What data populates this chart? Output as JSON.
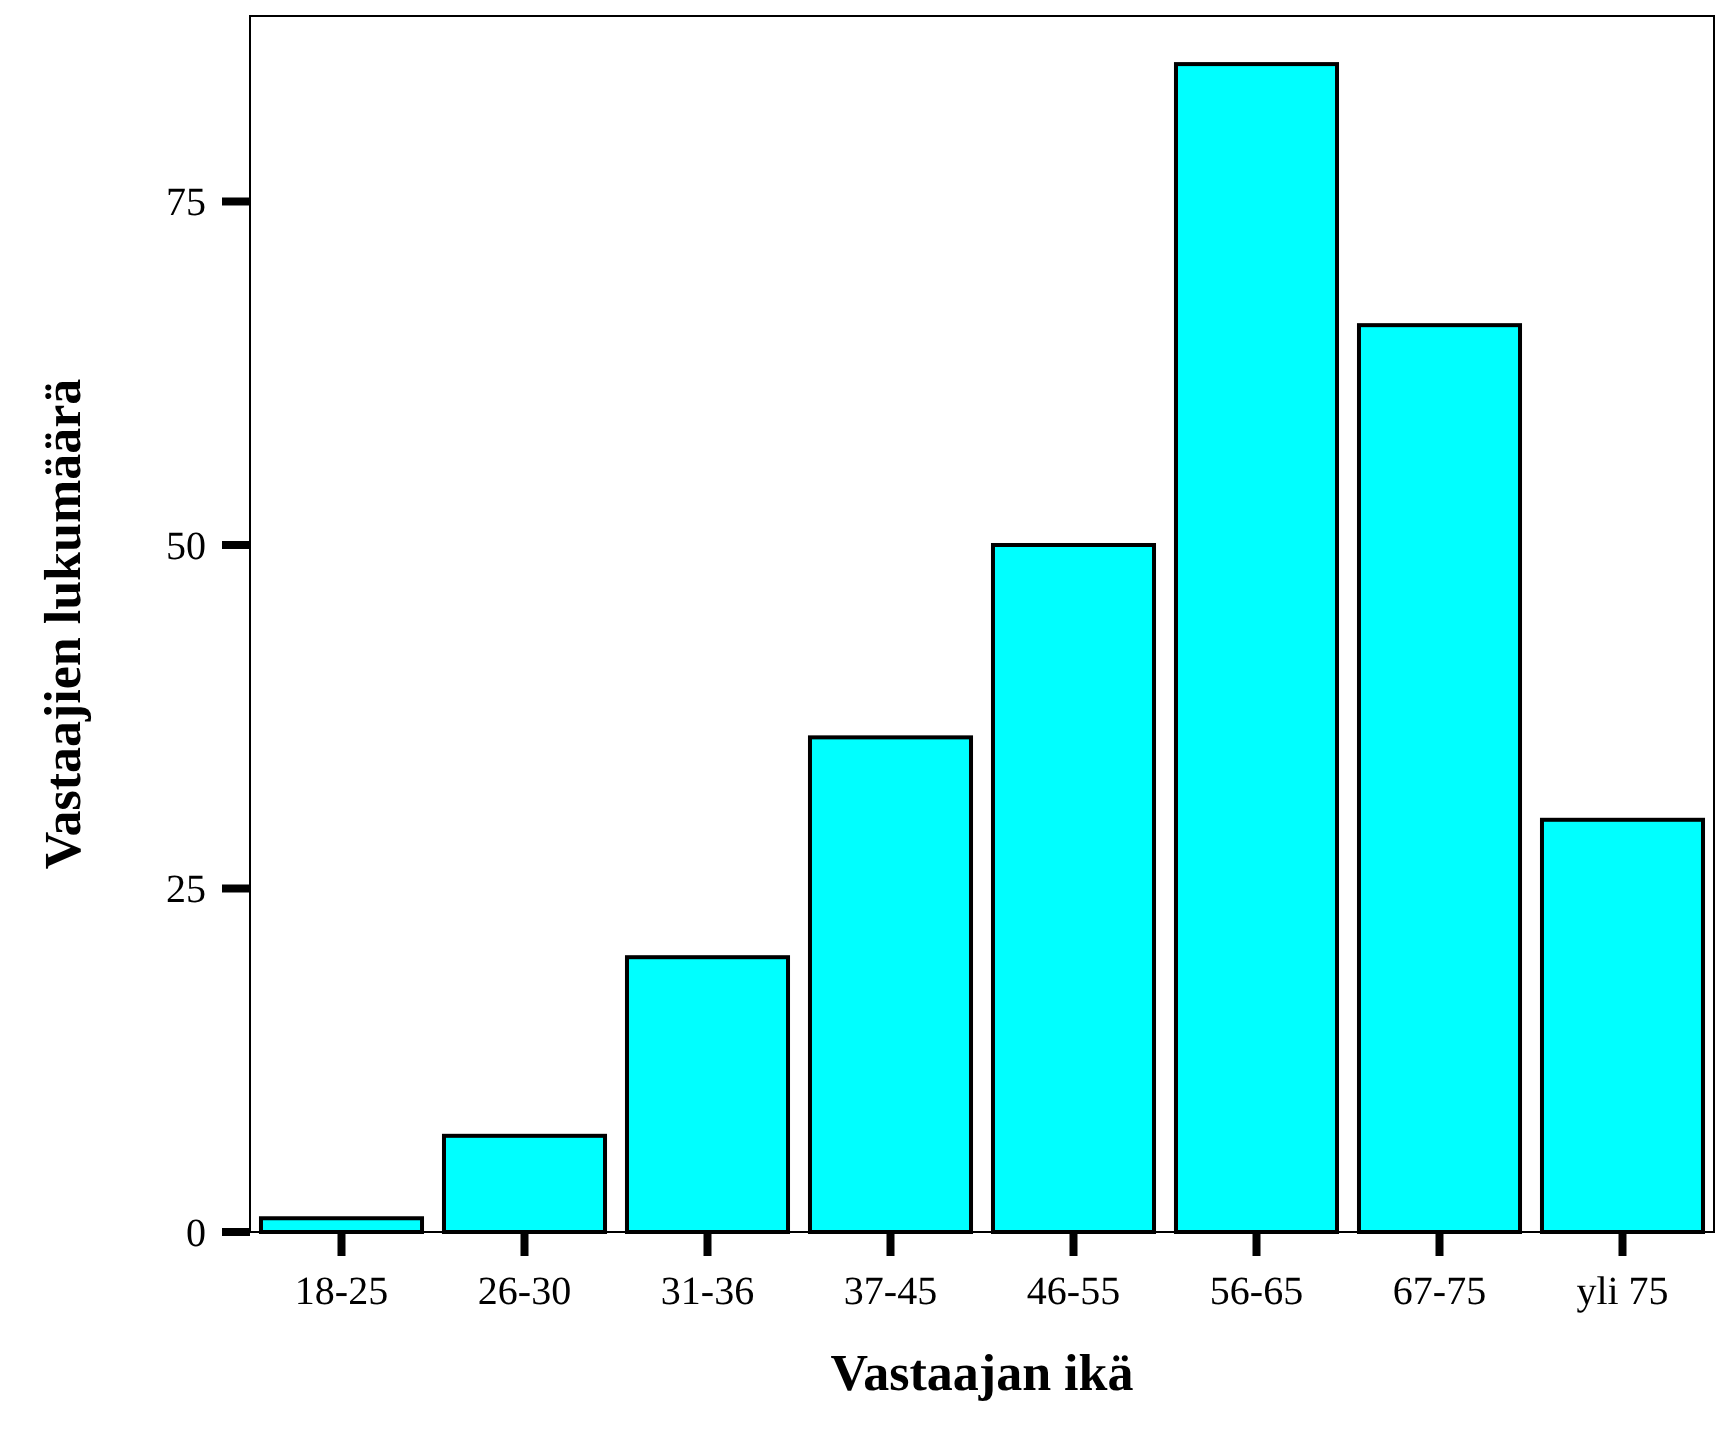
{
  "chart_data": {
    "type": "bar",
    "xlabel": "Vastaajan ikä",
    "ylabel": "Vastaajien lukumäärä",
    "categories": [
      "18-25",
      "26-30",
      "31-36",
      "37-45",
      "46-55",
      "56-65",
      "67-75",
      "yli 75"
    ],
    "values": [
      1,
      7,
      20,
      36,
      50,
      85,
      66,
      30
    ],
    "color": "#00ffff",
    "ylim": [
      0,
      88.5
    ],
    "yticks": [
      0,
      25,
      50,
      75
    ],
    "grid": false
  }
}
